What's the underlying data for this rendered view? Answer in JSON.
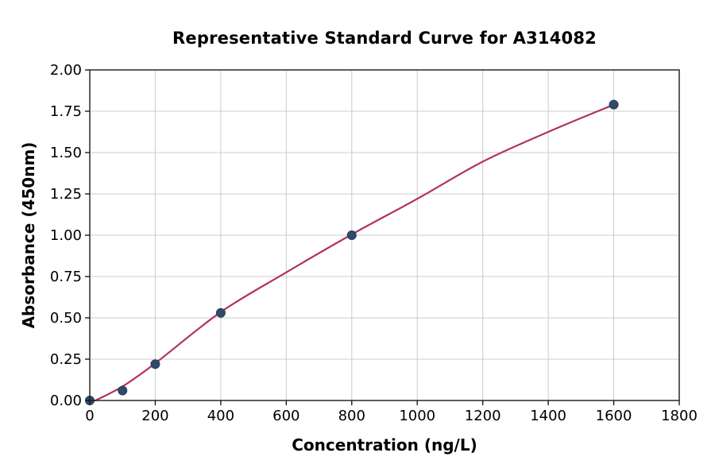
{
  "chart_data": {
    "type": "scatter",
    "title": "Representative Standard Curve for A314082",
    "xlabel": "Concentration (ng/L)",
    "ylabel": "Absorbance (450nm)",
    "xlim": [
      0,
      1800
    ],
    "ylim": [
      0,
      2.0
    ],
    "xticks": [
      0,
      200,
      400,
      600,
      800,
      1000,
      1200,
      1400,
      1600,
      1800
    ],
    "xtick_labels": [
      "0",
      "200",
      "400",
      "600",
      "800",
      "1000",
      "1200",
      "1400",
      "1600",
      "1800"
    ],
    "yticks": [
      0,
      0.25,
      0.5,
      0.75,
      1.0,
      1.25,
      1.5,
      1.75,
      2.0
    ],
    "ytick_labels": [
      "0.00",
      "0.25",
      "0.50",
      "0.75",
      "1.00",
      "1.25",
      "1.50",
      "1.75",
      "2.00"
    ],
    "grid": true,
    "legend": "none",
    "points": [
      {
        "x": 0,
        "y": 0.0
      },
      {
        "x": 100,
        "y": 0.06
      },
      {
        "x": 200,
        "y": 0.22
      },
      {
        "x": 400,
        "y": 0.53
      },
      {
        "x": 800,
        "y": 1.0
      },
      {
        "x": 1600,
        "y": 1.79
      }
    ],
    "fit_curve": [
      {
        "x": 17,
        "y": 0.0
      },
      {
        "x": 100,
        "y": 0.085
      },
      {
        "x": 200,
        "y": 0.225
      },
      {
        "x": 400,
        "y": 0.535
      },
      {
        "x": 600,
        "y": 0.775
      },
      {
        "x": 800,
        "y": 1.005
      },
      {
        "x": 1000,
        "y": 1.22
      },
      {
        "x": 1200,
        "y": 1.445
      },
      {
        "x": 1400,
        "y": 1.625
      },
      {
        "x": 1600,
        "y": 1.79
      }
    ],
    "colors": {
      "curve_line": "#b23262",
      "marker": "#2e4b69",
      "marker_edge": "#24405c",
      "grid_line": "#cccccc",
      "spine": "#1a1a1a",
      "text": "#000000",
      "background": "#ffffff"
    }
  }
}
